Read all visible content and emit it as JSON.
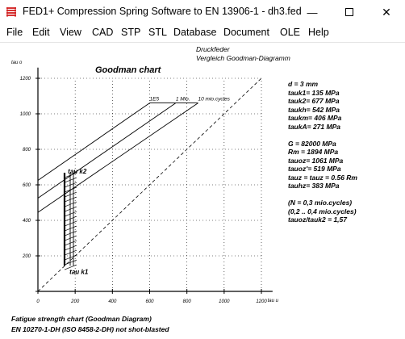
{
  "window": {
    "title": "FED1+  Compression Spring Software to EN 13906-1  -  dh3.fed",
    "minimize_glyph": "—",
    "close_glyph": "✕"
  },
  "menu": [
    "File",
    "Edit",
    "View",
    "CAD",
    "STP",
    "STL",
    "Database",
    "Document",
    "OLE",
    "Help"
  ],
  "header": {
    "line1": "Druckfeder",
    "line2": "Vergleich Goodman-Diagramm"
  },
  "chart_title": "Goodman chart",
  "params": [
    "d  = 3 mm",
    "tauk1= 135 MPa",
    "tauk2= 677 MPa",
    "taukh=  542 MPa",
    "taukm=  406 MPa",
    "taukA=  271 MPa",
    "",
    "G  =  82000 MPa",
    "Rm  =  1894 MPa",
    "tauoz= 1061 MPa",
    "tauoz'=  519 MPa",
    "tauz = tauz = 0.56 Rm",
    "tauhz=  383 MPa",
    "",
    "(N = 0,3 mio.cycles)",
    "(0,2 .. 0,4 mio.cycles)",
    "tauoz/tauk2 = 1,57"
  ],
  "footer": {
    "line1": "Fatigue strength chart (Goodman Diagram)",
    "line2": "EN 10270-1-DH (ISO 8458-2-DH) not shot-blasted"
  },
  "chart_data": {
    "type": "line",
    "title": "Goodman chart",
    "xlabel": "tau u",
    "ylabel": "tau o",
    "xlim": [
      0,
      1200
    ],
    "ylim": [
      0,
      1200
    ],
    "x_ticks": [
      0,
      200,
      400,
      600,
      800,
      1000,
      1200
    ],
    "y_ticks": [
      0,
      200,
      400,
      600,
      800,
      1000,
      1200
    ],
    "series": [
      {
        "name": "1E5",
        "points": [
          [
            0,
            625
          ],
          [
            600,
            1061
          ]
        ]
      },
      {
        "name": "1 Mio.",
        "points": [
          [
            0,
            525
          ],
          [
            740,
            1061
          ]
        ]
      },
      {
        "name": "10 mio.cycles",
        "points": [
          [
            0,
            445
          ],
          [
            860,
            1061
          ]
        ]
      },
      {
        "name": "",
        "points": [
          [
            0,
            0
          ],
          [
            1200,
            1200
          ]
        ],
        "style": "dashed"
      }
    ],
    "annotations": [
      {
        "text": "1E5",
        "x": 600,
        "y": 1061
      },
      {
        "text": "1 Mio.",
        "x": 740,
        "y": 1061
      },
      {
        "text": "10 mio.cycles",
        "x": 860,
        "y": 1061
      },
      {
        "text": "tau k2",
        "x": 135,
        "y": 677
      },
      {
        "text": "tau k1",
        "x": 135,
        "y": 135
      }
    ],
    "working_stroke": {
      "tau_k1": 135,
      "tau_k2": 677
    },
    "grid": false
  }
}
